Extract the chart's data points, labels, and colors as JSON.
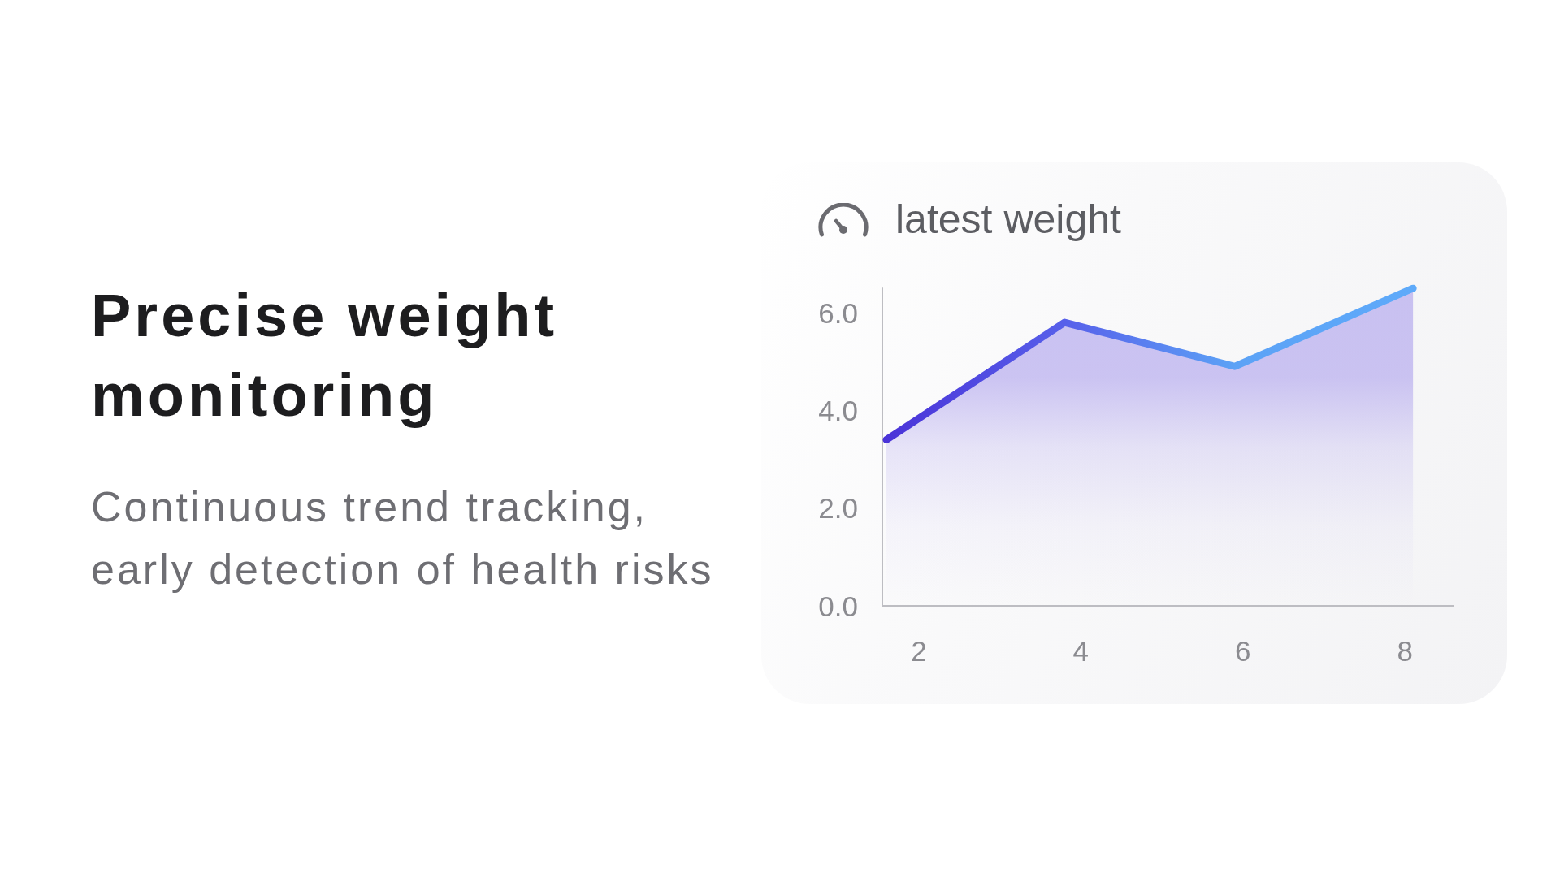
{
  "chart_data": {
    "type": "area",
    "title": "latest weight",
    "annotations": [
      "Precise weight monitoring",
      "Continuous trend tracking, early detection of health risks"
    ],
    "x": [
      1.6,
      3.8,
      5.9,
      8.1
    ],
    "values": [
      3.4,
      5.8,
      4.9,
      6.5
    ],
    "color": "#b5aaee",
    "colors": [
      "#4a33d8",
      "#5760ea",
      "#5ca2f6",
      "#5eaafa"
    ],
    "xlim": [
      1.55,
      8.6
    ],
    "xticks": [
      2,
      4,
      6,
      8
    ],
    "ylim": [
      0,
      6.5
    ],
    "yticks": [
      {
        "value": 0,
        "label": "0.0"
      },
      {
        "value": 2,
        "label": "2.0"
      },
      {
        "value": 4,
        "label": "4.0"
      },
      {
        "value": 6,
        "label": "6.0"
      }
    ]
  }
}
